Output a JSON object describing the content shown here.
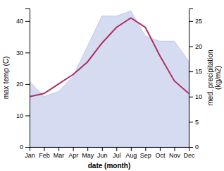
{
  "chart_data": {
    "type": "line",
    "x_label": "date (month)",
    "y_label": "max temp (C)",
    "y2_label": "med. precipitation\n(kg/m2)",
    "categories": [
      "Jan",
      "Feb",
      "Mar",
      "Apr",
      "May",
      "Jun",
      "Jul",
      "Aug",
      "Sep",
      "Oct",
      "Nov",
      "Dec"
    ],
    "series": [
      {
        "type": "area",
        "axis": "y2",
        "color": "#b3c0e8",
        "values": [
          13,
          10,
          11,
          14,
          20,
          26,
          26,
          27,
          22,
          21,
          21,
          17
        ]
      },
      {
        "type": "line",
        "color": "#b03060",
        "values": [
          16,
          17,
          20,
          23,
          27,
          33,
          38,
          41,
          38,
          29,
          21,
          17
        ]
      }
    ],
    "ylim": [
      0,
      44
    ],
    "yticks": [
      0,
      10,
      20,
      30,
      40
    ],
    "y2lim": [
      0,
      27.5
    ],
    "y2ticks": [
      0,
      5,
      10,
      15,
      20,
      25
    ],
    "grid": false
  }
}
